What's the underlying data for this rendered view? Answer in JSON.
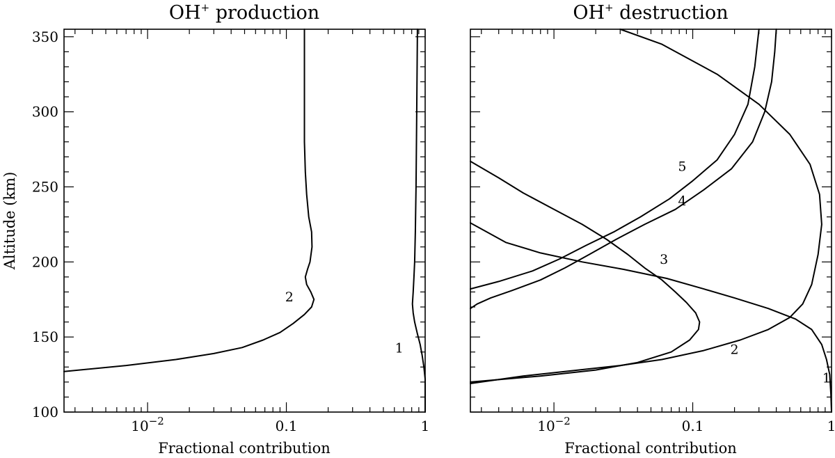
{
  "chart_data": [
    {
      "type": "line",
      "title": "OH",
      "title_sup": "+",
      "title_suffix": " production",
      "xlabel": "Fractional contribution",
      "ylabel": "Altitude (km)",
      "xscale": "log",
      "xlim": [
        0.0025,
        1
      ],
      "ylim": [
        100,
        355
      ],
      "x_ticks": [
        {
          "value": 0.01,
          "label": "10",
          "sup": "−2"
        },
        {
          "value": 0.1,
          "label": "0.1",
          "sup": ""
        },
        {
          "value": 1,
          "label": "1",
          "sup": ""
        }
      ],
      "y_ticks": [
        100,
        150,
        200,
        250,
        300,
        350
      ],
      "series": [
        {
          "name": "1",
          "label_pos": {
            "x": 0.65,
            "y": 143
          },
          "points": [
            [
              1,
              100
            ],
            [
              1,
              110
            ],
            [
              1,
              122
            ],
            [
              0.98,
              130
            ],
            [
              0.95,
              138
            ],
            [
              0.92,
              145
            ],
            [
              0.88,
              152
            ],
            [
              0.84,
              160
            ],
            [
              0.82,
              166
            ],
            [
              0.81,
              172
            ],
            [
              0.82,
              180
            ],
            [
              0.83,
              190
            ],
            [
              0.84,
              200
            ],
            [
              0.85,
              220
            ],
            [
              0.86,
              250
            ],
            [
              0.87,
              300
            ],
            [
              0.88,
              355
            ]
          ]
        },
        {
          "name": "2",
          "label_pos": {
            "x": 0.105,
            "y": 177
          },
          "points": [
            [
              0.0025,
              127
            ],
            [
              0.007,
              131
            ],
            [
              0.016,
              135
            ],
            [
              0.03,
              139
            ],
            [
              0.048,
              143
            ],
            [
              0.068,
              148
            ],
            [
              0.09,
              153
            ],
            [
              0.112,
              159
            ],
            [
              0.135,
              165
            ],
            [
              0.152,
              170
            ],
            [
              0.158,
              175
            ],
            [
              0.15,
              180
            ],
            [
              0.14,
              185
            ],
            [
              0.137,
              190
            ],
            [
              0.142,
              195
            ],
            [
              0.148,
              200
            ],
            [
              0.153,
              210
            ],
            [
              0.152,
              220
            ],
            [
              0.145,
              230
            ],
            [
              0.14,
              245
            ],
            [
              0.137,
              260
            ],
            [
              0.135,
              280
            ],
            [
              0.135,
              310
            ],
            [
              0.135,
              355
            ]
          ]
        }
      ]
    },
    {
      "type": "line",
      "title": "OH",
      "title_sup": "+",
      "title_suffix": " destruction",
      "xlabel": "Fractional contribution",
      "ylabel": "",
      "xscale": "log",
      "xlim": [
        0.0025,
        1
      ],
      "ylim": [
        100,
        355
      ],
      "x_ticks": [
        {
          "value": 0.01,
          "label": "10",
          "sup": "−2"
        },
        {
          "value": 0.1,
          "label": "0.1",
          "sup": ""
        },
        {
          "value": 1,
          "label": "1",
          "sup": ""
        }
      ],
      "y_ticks": [
        100,
        150,
        200,
        250,
        300,
        350
      ],
      "series": [
        {
          "name": "1",
          "label_pos": {
            "x": 0.92,
            "y": 123
          },
          "points": [
            [
              1,
              100
            ],
            [
              0.99,
              112
            ],
            [
              0.97,
              125
            ],
            [
              0.92,
              135
            ],
            [
              0.85,
              145
            ],
            [
              0.72,
              155
            ],
            [
              0.55,
              162
            ],
            [
              0.35,
              169
            ],
            [
              0.2,
              176
            ],
            [
              0.12,
              182
            ],
            [
              0.065,
              189
            ],
            [
              0.032,
              195
            ],
            [
              0.016,
              200
            ],
            [
              0.008,
              206
            ],
            [
              0.0045,
              213
            ],
            [
              0.0025,
              226
            ]
          ]
        },
        {
          "name": "2",
          "label_pos": {
            "x": 0.2,
            "y": 142
          },
          "points": [
            [
              0.0025,
              119
            ],
            [
              0.006,
              124
            ],
            [
              0.015,
              128
            ],
            [
              0.03,
              131
            ],
            [
              0.06,
              135
            ],
            [
              0.12,
              141
            ],
            [
              0.22,
              148
            ],
            [
              0.35,
              155
            ],
            [
              0.5,
              163
            ],
            [
              0.62,
              172
            ],
            [
              0.72,
              185
            ],
            [
              0.8,
              205
            ],
            [
              0.85,
              225
            ],
            [
              0.82,
              245
            ],
            [
              0.7,
              265
            ],
            [
              0.5,
              285
            ],
            [
              0.3,
              305
            ],
            [
              0.15,
              325
            ],
            [
              0.06,
              345
            ],
            [
              0.03,
              355
            ]
          ]
        },
        {
          "name": "3",
          "label_pos": {
            "x": 0.062,
            "y": 202
          },
          "points": [
            [
              0.0025,
              120
            ],
            [
              0.008,
              124
            ],
            [
              0.02,
              128
            ],
            [
              0.04,
              133
            ],
            [
              0.07,
              140
            ],
            [
              0.095,
              148
            ],
            [
              0.11,
              155
            ],
            [
              0.112,
              160
            ],
            [
              0.105,
              166
            ],
            [
              0.09,
              173
            ],
            [
              0.075,
              180
            ],
            [
              0.06,
              188
            ],
            [
              0.045,
              196
            ],
            [
              0.034,
              205
            ],
            [
              0.024,
              215
            ],
            [
              0.016,
              225
            ],
            [
              0.01,
              235
            ],
            [
              0.006,
              246
            ],
            [
              0.004,
              256
            ],
            [
              0.0025,
              267
            ]
          ]
        },
        {
          "name": "4",
          "label_pos": {
            "x": 0.084,
            "y": 241
          },
          "points": [
            [
              0.0025,
              169
            ],
            [
              0.0028,
              172
            ],
            [
              0.0035,
              176
            ],
            [
              0.005,
              181
            ],
            [
              0.008,
              188
            ],
            [
              0.012,
              196
            ],
            [
              0.018,
              205
            ],
            [
              0.028,
              215
            ],
            [
              0.045,
              225
            ],
            [
              0.075,
              235
            ],
            [
              0.12,
              248
            ],
            [
              0.19,
              262
            ],
            [
              0.27,
              280
            ],
            [
              0.33,
              300
            ],
            [
              0.37,
              320
            ],
            [
              0.39,
              340
            ],
            [
              0.4,
              355
            ]
          ]
        },
        {
          "name": "5",
          "label_pos": {
            "x": 0.084,
            "y": 264
          },
          "points": [
            [
              0.0025,
              182
            ],
            [
              0.004,
              187
            ],
            [
              0.007,
              194
            ],
            [
              0.011,
              202
            ],
            [
              0.017,
              211
            ],
            [
              0.027,
              220
            ],
            [
              0.042,
              230
            ],
            [
              0.068,
              242
            ],
            [
              0.1,
              254
            ],
            [
              0.15,
              268
            ],
            [
              0.2,
              285
            ],
            [
              0.25,
              305
            ],
            [
              0.28,
              330
            ],
            [
              0.3,
              355
            ]
          ]
        }
      ]
    }
  ]
}
